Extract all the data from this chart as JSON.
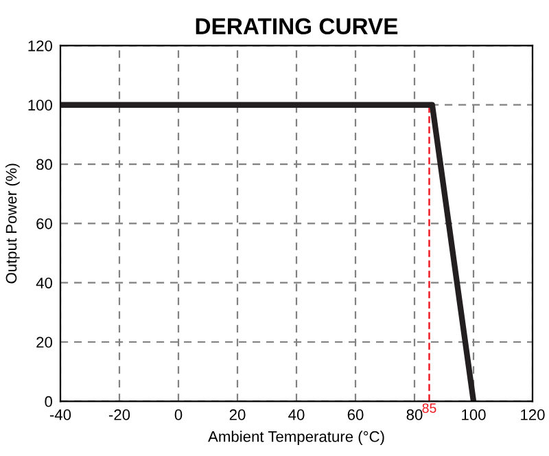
{
  "chart_data": {
    "type": "line",
    "title": "DERATING CURVE",
    "xlabel": "Ambient Temperature (°C)",
    "ylabel": "Output Power (%)",
    "x": [
      -40,
      86,
      100
    ],
    "series": [
      {
        "color": "#231f20",
        "values": [
          100,
          100,
          0
        ]
      }
    ],
    "xlim": [
      -40,
      120
    ],
    "xticks": [
      -40,
      -20,
      0,
      20,
      40,
      60,
      80,
      100,
      120
    ],
    "ylim": [
      0,
      120
    ],
    "yticks": [
      0,
      20,
      40,
      60,
      80,
      100,
      120
    ],
    "grid": true,
    "marker": "none",
    "line_style": "solid",
    "ref_lines": [
      {
        "axis": "x",
        "value": 85,
        "label": "85",
        "color": "#ed1c24",
        "line_style": "dashed"
      }
    ]
  }
}
